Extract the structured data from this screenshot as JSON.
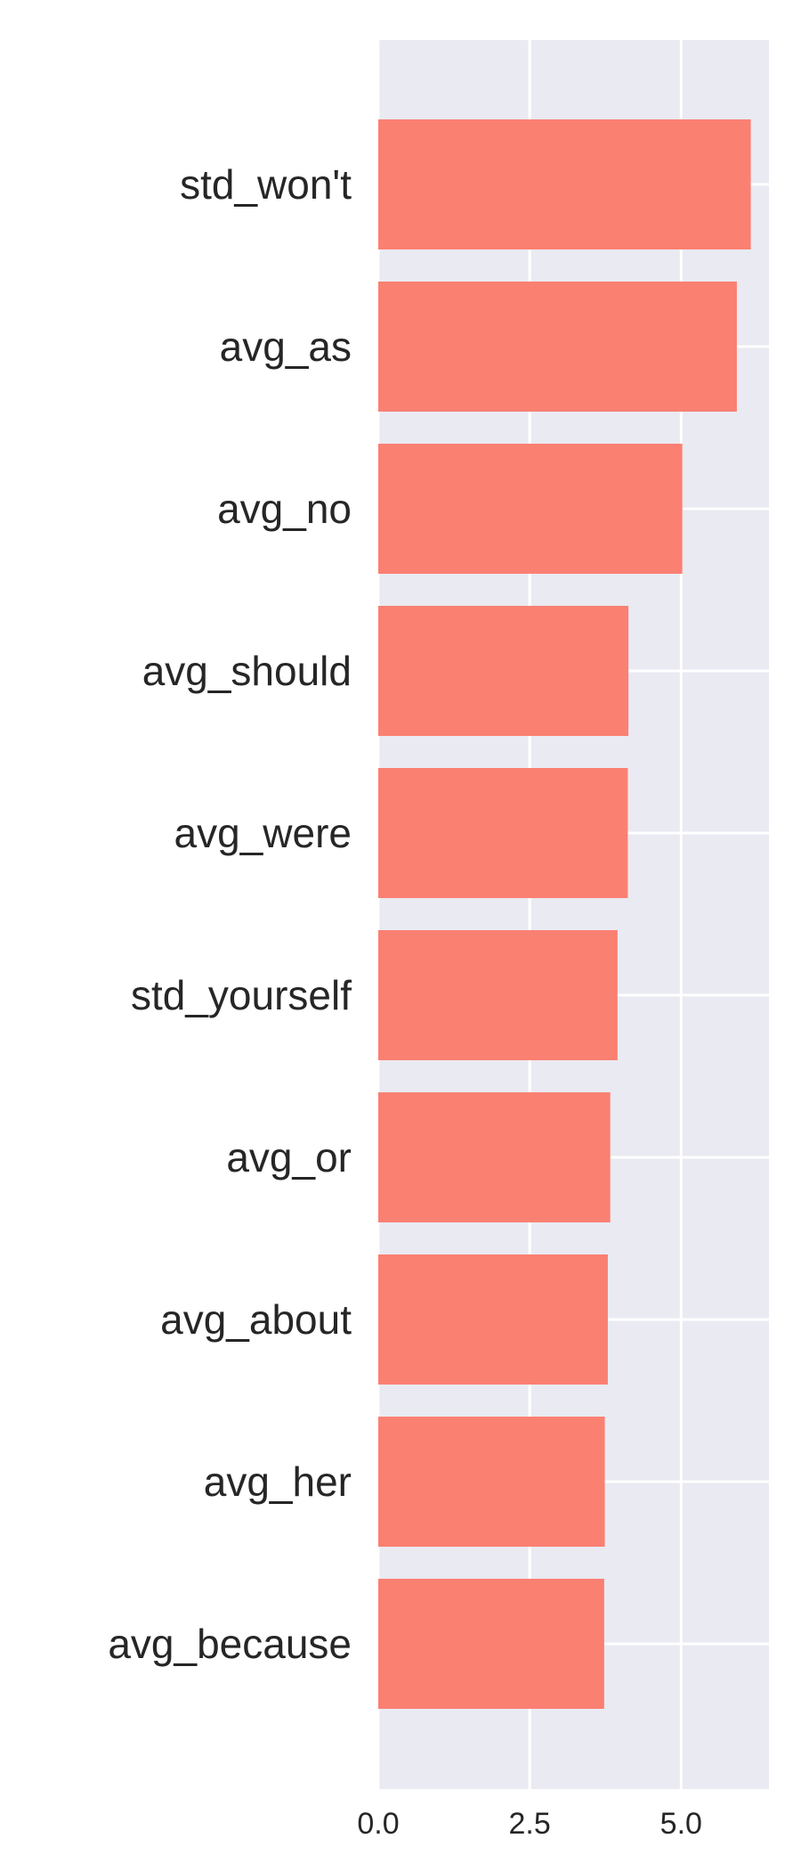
{
  "chart_data": {
    "type": "bar",
    "orientation": "horizontal",
    "categories": [
      "std_won't",
      "avg_as",
      "avg_no",
      "avg_should",
      "avg_were",
      "std_yourself",
      "avg_or",
      "avg_about",
      "avg_her",
      "avg_because"
    ],
    "values": [
      6.15,
      5.92,
      5.02,
      4.13,
      4.12,
      3.95,
      3.83,
      3.79,
      3.74,
      3.73
    ],
    "x_ticks": [
      0.0,
      2.5,
      5.0
    ],
    "x_tick_labels": [
      "0.0",
      "2.5",
      "5.0"
    ],
    "xlim": [
      0,
      6.45
    ],
    "grid": true,
    "title": "",
    "xlabel": "",
    "ylabel": "",
    "colors": {
      "bar": "#fa8072",
      "plot_background": "#eaeaf2",
      "grid": "#ffffff",
      "text": "#262626"
    }
  }
}
